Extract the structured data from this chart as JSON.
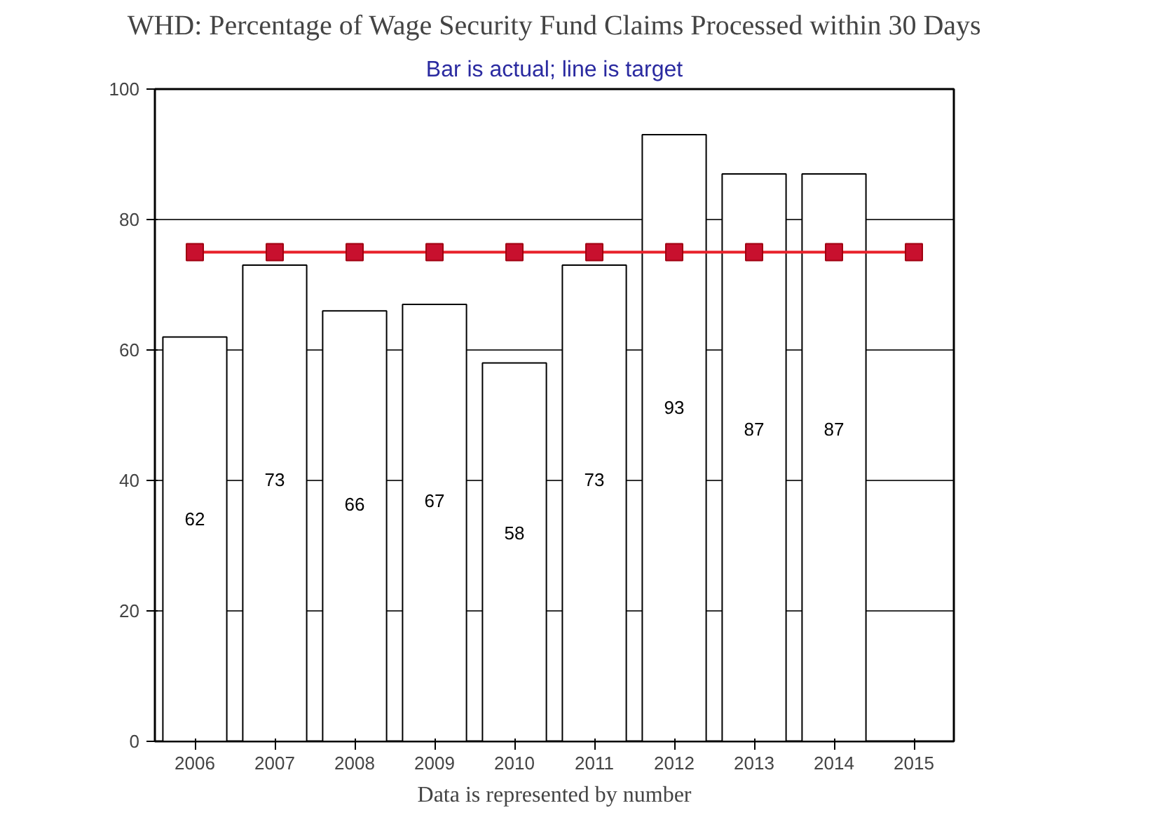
{
  "chart_data": {
    "type": "bar",
    "title": "WHD: Percentage of Wage Security Fund Claims Processed within 30 Days",
    "subtitle": "Bar is actual; line is target",
    "categories": [
      "2006",
      "2007",
      "2008",
      "2009",
      "2010",
      "2011",
      "2012",
      "2013",
      "2014",
      "2015"
    ],
    "series": [
      {
        "color": "#ffffff",
        "values": [
          62,
          73,
          66,
          67,
          58,
          73,
          93,
          87,
          87,
          null
        ],
        "value_labels": [
          "62",
          "73",
          "66",
          "67",
          "58",
          "73",
          "93",
          "87",
          "87",
          null
        ]
      },
      {
        "type": "line",
        "color": "#e8202a",
        "marker": "square",
        "values": [
          75,
          75,
          75,
          75,
          75,
          75,
          75,
          75,
          75,
          75
        ]
      }
    ],
    "ylim": [
      0,
      100
    ],
    "yticks": [
      0,
      20,
      40,
      60,
      80,
      100
    ],
    "grid": "y",
    "annotations": [
      "Data is represented by number"
    ]
  }
}
